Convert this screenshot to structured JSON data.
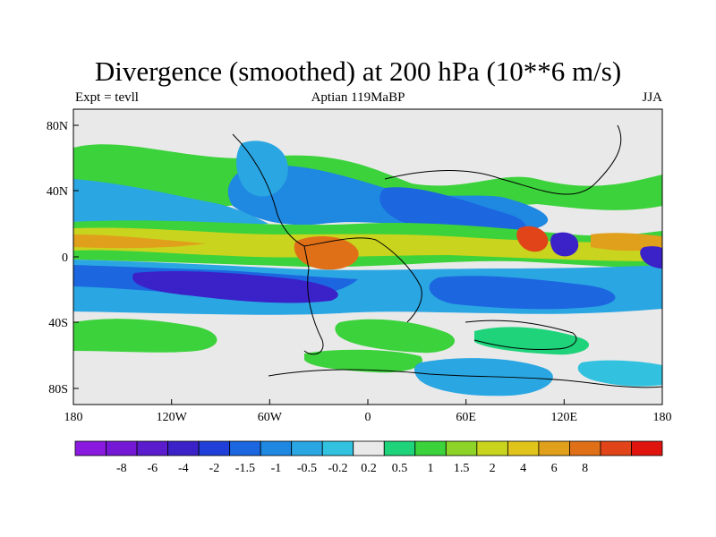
{
  "title": "Divergence (smoothed) at 200 hPa (10**6 m/s)",
  "left_label": "Expt = tevll",
  "center_label": "Aptian  119MaBP",
  "right_label": "JJA",
  "chart_data": {
    "type": "heatmap",
    "title": "Divergence (smoothed) at 200 hPa (10**6 m/s)",
    "x_ticks": [
      "180",
      "120W",
      "60W",
      "0",
      "60E",
      "120E",
      "180"
    ],
    "y_ticks": [
      "80N",
      "40N",
      "0",
      "40S",
      "80S"
    ],
    "x_range": [
      -180,
      180
    ],
    "y_range": [
      -90,
      90
    ],
    "colorbar": {
      "labels": [
        "-8",
        "-6",
        "-4",
        "-2",
        "-1.5",
        "-1",
        "-0.5",
        "-0.2",
        "0.2",
        "0.5",
        "1",
        "1.5",
        "2",
        "4",
        "6",
        "8"
      ],
      "colors": [
        "#8a1ae0",
        "#7418d6",
        "#5a1ccc",
        "#3b22c8",
        "#1f3fd8",
        "#1c66e0",
        "#1f88e0",
        "#2aa6e2",
        "#32c2e0",
        "#e9e9e9",
        "#1ed37a",
        "#3cd23c",
        "#8ed428",
        "#c8d41e",
        "#e0c41c",
        "#e0a01c",
        "#e07018",
        "#e04418",
        "#e0140e"
      ]
    }
  }
}
